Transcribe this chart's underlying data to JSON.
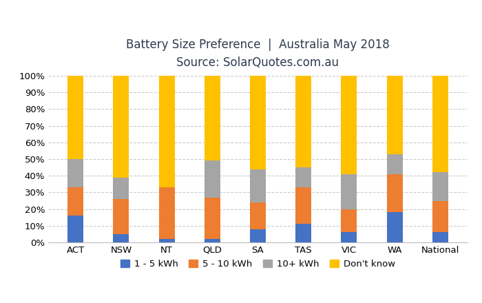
{
  "categories": [
    "ACT",
    "NSW",
    "NT",
    "QLD",
    "SA",
    "TAS",
    "VIC",
    "WA",
    "National"
  ],
  "series": {
    "1 - 5 kWh": [
      16,
      5,
      2,
      2,
      8,
      11,
      6,
      18,
      6
    ],
    "5 - 10 kWh": [
      17,
      21,
      31,
      25,
      16,
      22,
      14,
      23,
      19
    ],
    "10+ kWh": [
      17,
      13,
      0,
      22,
      20,
      12,
      21,
      12,
      17
    ],
    "Don't know": [
      50,
      61,
      67,
      51,
      56,
      55,
      59,
      47,
      58
    ]
  },
  "colors": {
    "1 - 5 kWh": "#4472C4",
    "5 - 10 kWh": "#ED7D31",
    "10+ kWh": "#A5A5A5",
    "Don't know": "#FFC000"
  },
  "title_line1": "Battery Size Preference  |  Australia May 2018",
  "title_line2": "Source: SolarQuotes.com.au",
  "ylim": [
    0,
    100
  ],
  "ytick_labels": [
    "0%",
    "10%",
    "20%",
    "30%",
    "40%",
    "50%",
    "60%",
    "70%",
    "80%",
    "90%",
    "100%"
  ],
  "ytick_values": [
    0,
    10,
    20,
    30,
    40,
    50,
    60,
    70,
    80,
    90,
    100
  ],
  "bar_width": 0.35,
  "background_color": "#FFFFFF",
  "grid_color": "#CCCCCC",
  "title_fontsize": 12,
  "subtitle_fontsize": 11,
  "legend_fontsize": 9.5,
  "tick_fontsize": 9.5,
  "title_color": "#2F3A4F",
  "subtitle_color": "#2F3A4F"
}
